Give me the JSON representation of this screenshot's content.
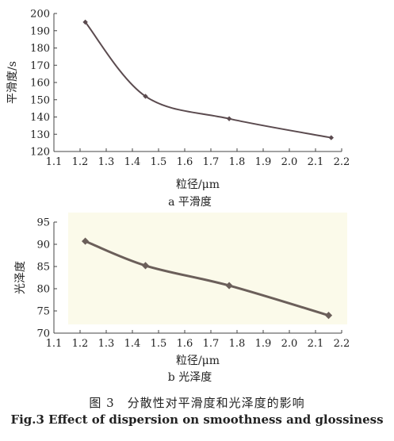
{
  "chart_data": [
    {
      "type": "line",
      "x": [
        1.22,
        1.45,
        1.77,
        2.16
      ],
      "series": [
        {
          "values": [
            195,
            152,
            139,
            128
          ]
        }
      ],
      "title": "a 平滑度",
      "xlabel": "粒径/μm",
      "ylabel": "平滑度/s",
      "xlim": [
        1.1,
        2.2
      ],
      "ylim": [
        120,
        200
      ],
      "xticks": [
        "1.1",
        "1.2",
        "1.3",
        "1.4",
        "1.5",
        "1.6",
        "1.7",
        "1.8",
        "1.9",
        "2.0",
        "2.1",
        "2.2"
      ],
      "yticks": [
        "120",
        "130",
        "140",
        "150",
        "160",
        "170",
        "180",
        "190",
        "200"
      ],
      "grid": false,
      "line_color": "#5b4b4f",
      "background": "#ffffff"
    },
    {
      "type": "line",
      "x": [
        1.22,
        1.45,
        1.77,
        2.15
      ],
      "series": [
        {
          "values": [
            90.7,
            85.2,
            80.7,
            74.0
          ]
        }
      ],
      "title": "b 光泽度",
      "xlabel": "粒径/μm",
      "ylabel": "光泽度",
      "xlim": [
        1.1,
        2.2
      ],
      "ylim": [
        70,
        95
      ],
      "xticks": [
        "1.1",
        "1.2",
        "1.3",
        "1.4",
        "1.5",
        "1.6",
        "1.7",
        "1.8",
        "1.9",
        "2.0",
        "2.1",
        "2.2"
      ],
      "yticks": [
        "70",
        "75",
        "80",
        "85",
        "90",
        "95"
      ],
      "grid": false,
      "line_color": "#6b5f5a",
      "background": "#fbfaea"
    }
  ],
  "caption": {
    "cn": "图 3　分散性对平滑度和光泽度的影响",
    "en": "Fig.3 Effect of dispersion on smoothness and glossiness"
  }
}
